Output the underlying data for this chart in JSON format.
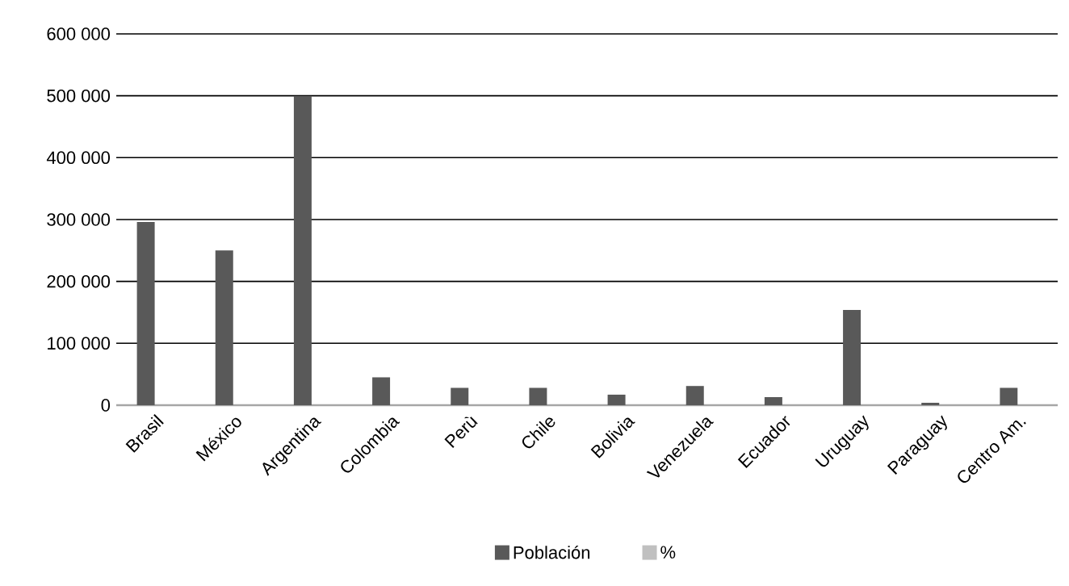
{
  "chart_data": {
    "type": "bar",
    "categories": [
      "Brasil",
      "México",
      "Argentina",
      "Colombia",
      "Perù",
      "Chile",
      "Bolivia",
      "Venezuela",
      "Ecuador",
      "Uruguay",
      "Paraguay",
      "Centro Am."
    ],
    "series": [
      {
        "name": "Población",
        "color": "#595959",
        "values": [
          296000,
          250000,
          500000,
          45000,
          28000,
          28000,
          17000,
          31000,
          13000,
          154000,
          4000,
          28000
        ]
      },
      {
        "name": "%",
        "color": "#c0c0c0",
        "values": [
          null,
          null,
          null,
          null,
          null,
          null,
          null,
          null,
          null,
          null,
          null,
          null
        ]
      }
    ],
    "ylim": [
      0,
      600000
    ],
    "yticks": [
      0,
      {
        "value": 100000,
        "label": "100 000"
      },
      {
        "value": 200000,
        "label": "200 000"
      },
      {
        "value": 300000,
        "label": "300 000"
      },
      {
        "value": 400000,
        "label": "400 000"
      },
      {
        "value": 500000,
        "label": "500 000"
      },
      {
        "value": 600000,
        "label": "600 000"
      }
    ],
    "grid": "y",
    "legend": "bottom"
  }
}
